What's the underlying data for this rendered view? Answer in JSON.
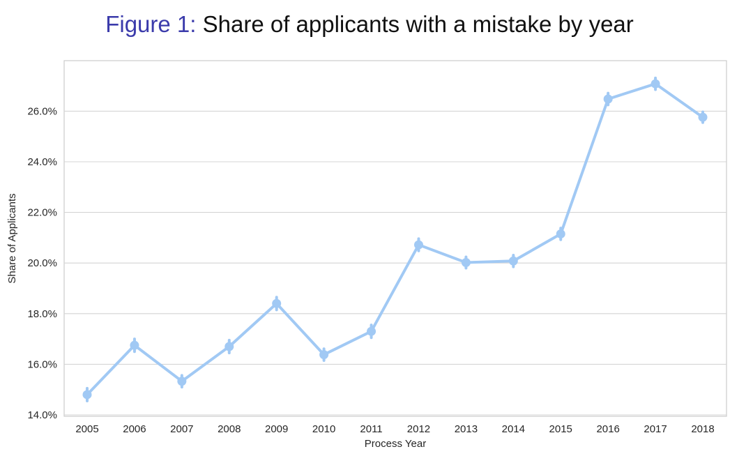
{
  "title": {
    "prefix": "Figure 1:",
    "text": "Share of applicants with a mistake by year"
  },
  "chart_data": {
    "type": "line",
    "x": [
      "2005",
      "2006",
      "2007",
      "2008",
      "2009",
      "2010",
      "2011",
      "2012",
      "2013",
      "2014",
      "2015",
      "2016",
      "2017",
      "2018"
    ],
    "values": [
      14.8,
      16.75,
      15.33,
      16.7,
      18.4,
      16.38,
      17.3,
      20.72,
      20.02,
      20.08,
      21.15,
      26.48,
      27.08,
      25.76
    ],
    "error_low": [
      14.55,
      16.5,
      15.1,
      16.45,
      18.15,
      16.15,
      17.05,
      20.48,
      19.8,
      19.85,
      20.92,
      26.25,
      26.85,
      25.55
    ],
    "error_high": [
      15.05,
      17.0,
      15.56,
      16.95,
      18.65,
      16.61,
      17.55,
      20.96,
      20.24,
      20.31,
      21.38,
      26.71,
      27.31,
      25.97
    ],
    "xlabel": "Process Year",
    "ylabel": "Share of Applicants",
    "ylim": [
      14.0,
      28.0
    ],
    "yticks": [
      14,
      16,
      18,
      20,
      22,
      24,
      26
    ],
    "ytick_labels": [
      "14.0%",
      "16.0%",
      "18.0%",
      "20.0%",
      "22.0%",
      "24.0%",
      "26.0%"
    ],
    "grid": "horizontal",
    "line_color": "#a1c9f4"
  }
}
